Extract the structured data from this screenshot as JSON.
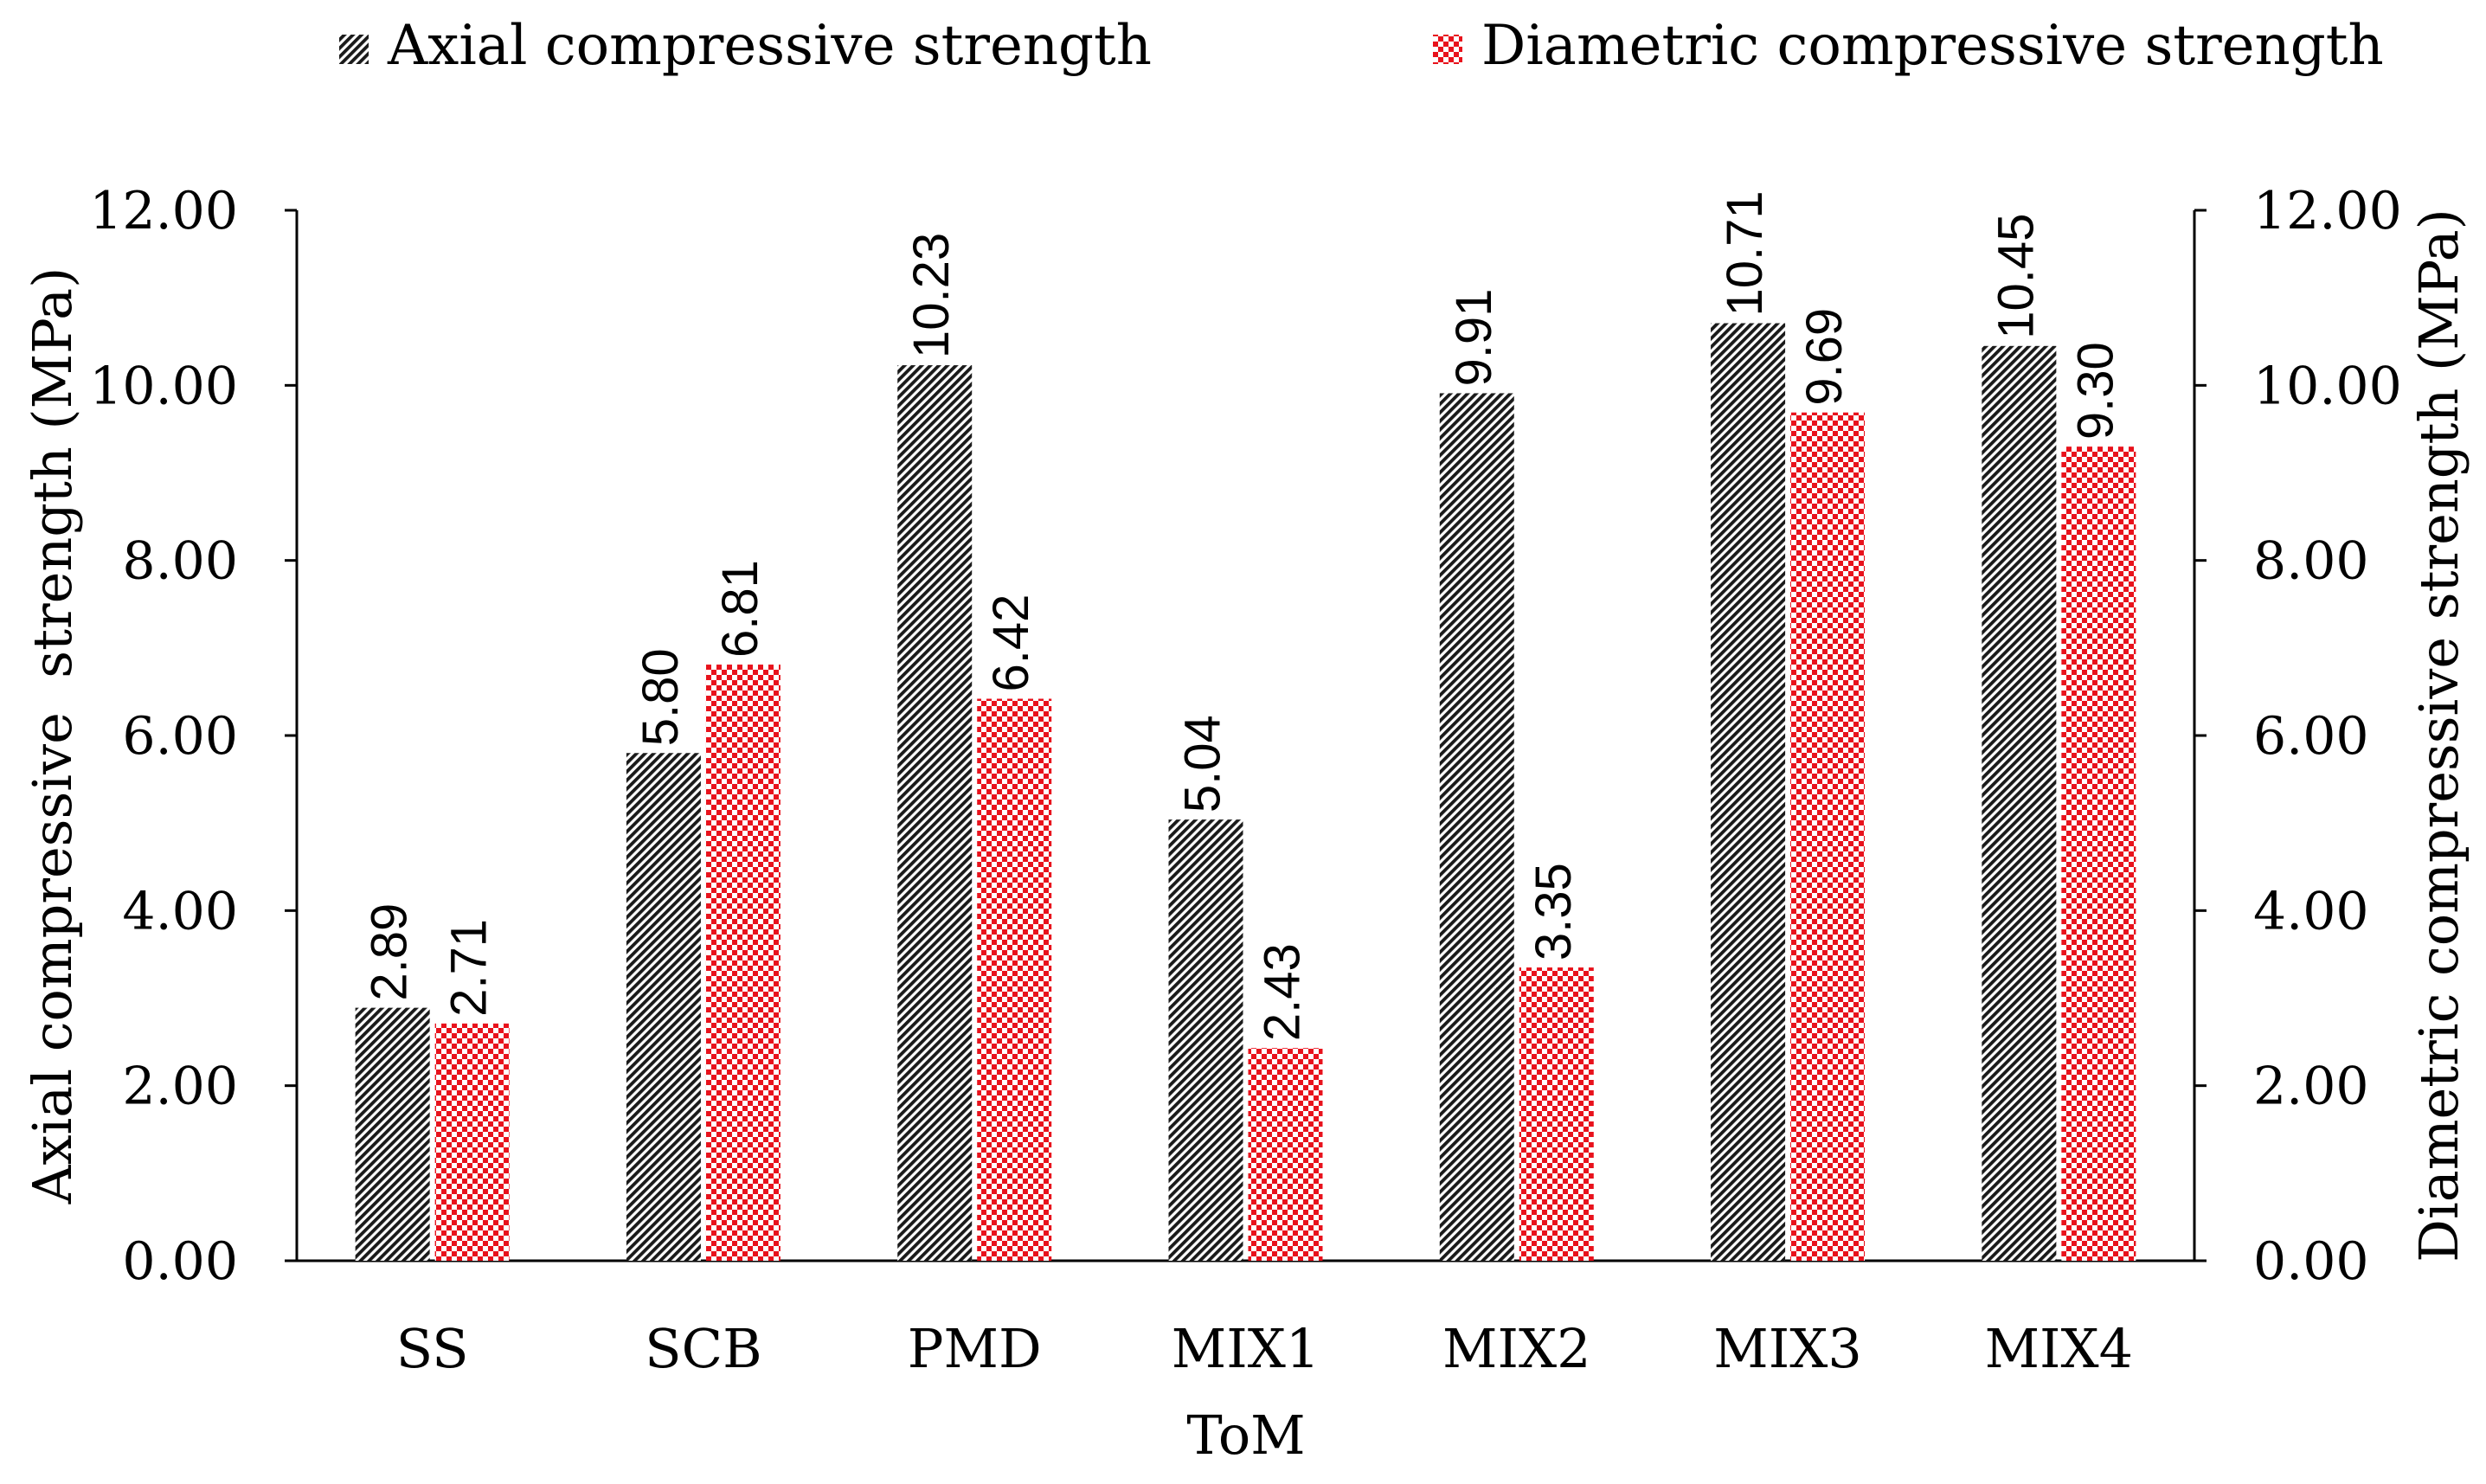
{
  "chart_data": {
    "type": "bar",
    "title": "",
    "categories": [
      "SS",
      "SCB",
      "PMD",
      "MIX1",
      "MIX2",
      "MIX3",
      "MIX4"
    ],
    "series": [
      {
        "name": "Axial compressive strength",
        "values": [
          2.89,
          5.8,
          10.23,
          5.04,
          9.91,
          10.71,
          10.45
        ],
        "labels": [
          "2.89",
          "5.80",
          "10.23",
          "5.04",
          "9.91",
          "10.71",
          "10.45"
        ],
        "axis": "left",
        "pattern": "diagonal-hatch",
        "color": "#1a1a1a"
      },
      {
        "name": "Diametric compressive strength",
        "values": [
          2.71,
          6.81,
          6.42,
          2.43,
          3.35,
          9.69,
          9.3
        ],
        "labels": [
          "2.71",
          "6.81",
          "6.42",
          "2.43",
          "3.35",
          "9.69",
          "9.30"
        ],
        "axis": "right",
        "pattern": "checkerboard",
        "color": "#e8121c"
      }
    ],
    "xlabel": "ToM",
    "ylabel": "Axial compressive  strength (MPa)",
    "y2label": "Diametric compressive strength (MPa)",
    "ylim": [
      0,
      12
    ],
    "y2lim": [
      0,
      12
    ],
    "yticks": [
      "0.00",
      "2.00",
      "4.00",
      "6.00",
      "8.00",
      "10.00",
      "12.00"
    ],
    "y2ticks": [
      "0.00",
      "2.00",
      "4.00",
      "6.00",
      "8.00",
      "10.00",
      "12.00"
    ],
    "grid": false,
    "legend_position": "top"
  }
}
